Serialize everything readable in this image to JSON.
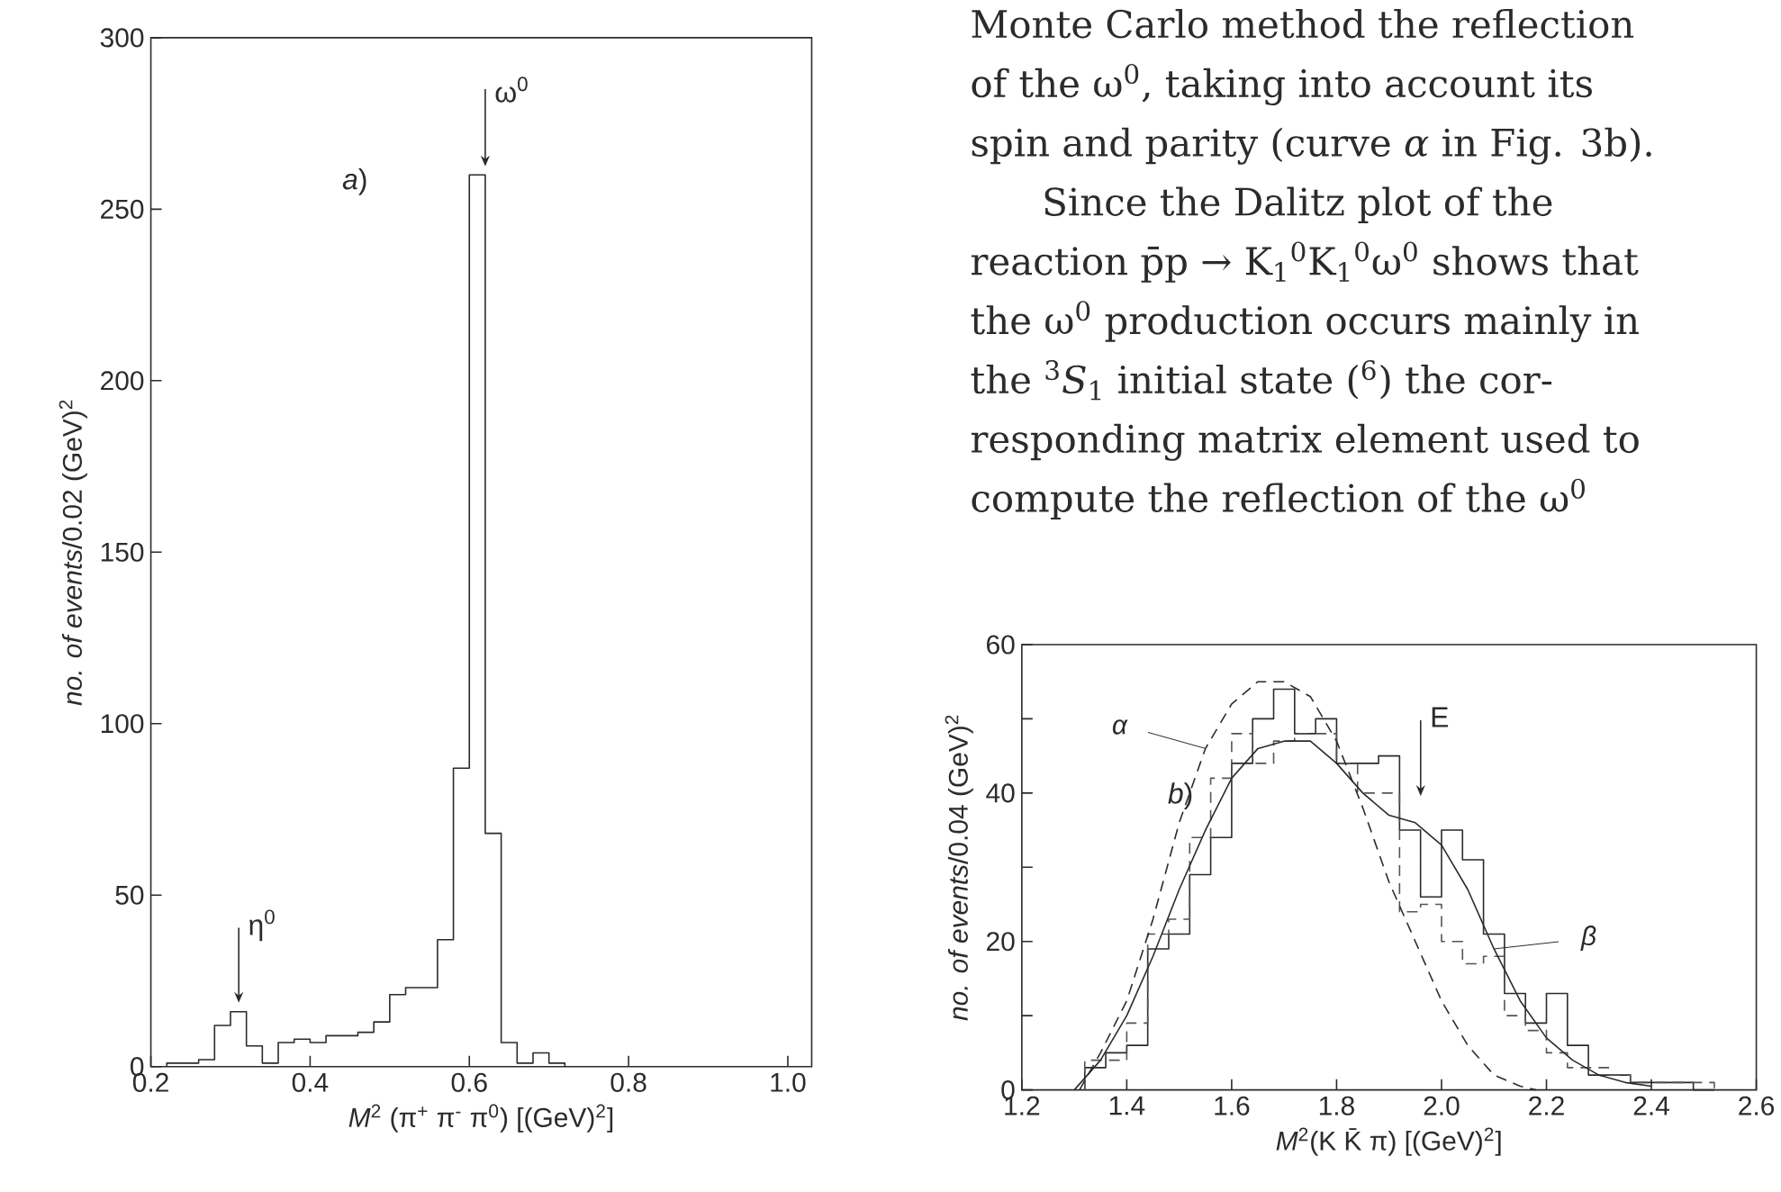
{
  "chart_data": [
    {
      "type": "histogram",
      "xlabel": "*M*$^{2}$ (π$^{+}$ π$^{-}$ π$^{0}$) [(GeV)$^{2}$]",
      "ylabel": "*no. of events*/0.02 (GeV)$^{2}$",
      "bins": [
        0.22,
        0.24,
        0.26,
        0.28,
        0.3,
        0.32,
        0.34,
        0.36,
        0.38,
        0.4,
        0.42,
        0.44,
        0.46,
        0.48,
        0.5,
        0.52,
        0.54,
        0.56,
        0.58,
        0.6,
        0.62,
        0.64,
        0.66,
        0.68,
        0.7,
        0.72
      ],
      "values": [
        1,
        1,
        2,
        12,
        16,
        6,
        1,
        7,
        8,
        7,
        9,
        9,
        10,
        13,
        21,
        23,
        23,
        37,
        87,
        260,
        68,
        7,
        1,
        4,
        1
      ],
      "color": "#2b2b2b",
      "xlim": [
        0.2,
        1.03
      ],
      "ylim": [
        0,
        300
      ],
      "xticks": [
        0.2,
        0.4,
        0.6,
        0.8,
        {
          "value": 1,
          "label": "1.0"
        }
      ],
      "yticks": [
        0,
        50,
        100,
        150,
        200,
        250,
        300
      ],
      "annotations": [
        "*a*)",
        "η$^{0}$",
        "ω$^{0}$"
      ]
    },
    {
      "type": "histogram",
      "xlabel": "*M*$^{2}$(K K̄ π) [(GeV)$^{2}$]",
      "ylabel": "*no. of events*/0.04 (GeV)$^{2}$",
      "bins": [
        1.32,
        1.36,
        1.4,
        1.44,
        1.48,
        1.52,
        1.56,
        1.6,
        1.64,
        1.68,
        1.72,
        1.76,
        1.8,
        1.84,
        1.88,
        1.92,
        1.96,
        2.0,
        2.04,
        2.08,
        2.12,
        2.16,
        2.2,
        2.24,
        2.28,
        2.32,
        2.36,
        2.4,
        2.44,
        2.48,
        2.52
      ],
      "series": [
        {
          "color": "#2b2b2b",
          "values": [
            3,
            5,
            6,
            19,
            21,
            29,
            34,
            44,
            50,
            54,
            48,
            50,
            44,
            44,
            45,
            35,
            26,
            35,
            31,
            21,
            13,
            9,
            13,
            6,
            2,
            2,
            1,
            1,
            1,
            0
          ]
        },
        {
          "color": "#555555",
          "line_style": "dashed",
          "values": [
            4,
            4,
            9,
            21,
            23,
            34,
            42,
            48,
            44,
            47,
            48,
            48,
            44,
            40,
            40,
            24,
            25,
            20,
            17,
            18,
            10,
            8,
            5,
            3,
            3,
            2,
            1,
            1,
            1,
            1
          ]
        },
        {
          "type": "line",
          "name": "β",
          "color": "#2b2b2b",
          "x": [
            1.3,
            1.35,
            1.4,
            1.45,
            1.5,
            1.55,
            1.6,
            1.65,
            1.7,
            1.75,
            1.8,
            1.85,
            1.9,
            1.95,
            2.0,
            2.05,
            2.1,
            2.15,
            2.2,
            2.25,
            2.3,
            2.35,
            2.4
          ],
          "values": [
            0,
            4,
            10,
            18,
            27,
            35,
            42,
            46,
            47,
            47,
            44,
            40,
            37,
            36,
            33,
            27,
            19,
            12,
            7,
            4,
            2,
            1,
            0.5
          ]
        },
        {
          "type": "line",
          "name": "α",
          "color": "#2b2b2b",
          "line_style": "dashed",
          "x": [
            1.31,
            1.35,
            1.4,
            1.45,
            1.5,
            1.55,
            1.6,
            1.65,
            1.7,
            1.75,
            1.8,
            1.85,
            1.9,
            1.95,
            2.0,
            2.05,
            2.1,
            2.15,
            2.18
          ],
          "values": [
            0,
            5,
            12,
            23,
            36,
            46,
            52,
            55,
            55,
            53,
            47,
            38,
            28,
            20,
            12,
            6,
            2,
            0.5,
            0
          ]
        }
      ],
      "xlim": [
        1.2,
        2.6
      ],
      "ylim": [
        0,
        60
      ],
      "xticks": [
        1.2,
        1.4,
        1.6,
        1.8,
        {
          "value": 2,
          "label": "2.0"
        },
        2.2,
        2.4,
        2.6
      ],
      "yticks": [
        0,
        {
          "value": 10,
          "label": null
        },
        20,
        {
          "value": 30,
          "label": null
        },
        40,
        {
          "value": 50,
          "label": null
        },
        60
      ],
      "annotations": [
        "*b*)",
        "E"
      ]
    },
    {
      "type": "other",
      "annotations": [
        "Monte Carlo method the reflection",
        "of the ω$^{0}$, taking into account its",
        "spin and parity (curve *α* in Fig. 3b).",
        "Since the Dalitz plot of the",
        "reaction p̄p → K$_{1}$$^{0}$K$_{1}$$^{0}$ω$^{0}$ shows that",
        "the ω$^{0}$ production occurs mainly in",
        "the $^{3}$*S*$_{1}$ initial state ($^{6}$) the cor-",
        "responding matrix element used to",
        "compute the reflection of the ω$^{0}$"
      ]
    }
  ]
}
